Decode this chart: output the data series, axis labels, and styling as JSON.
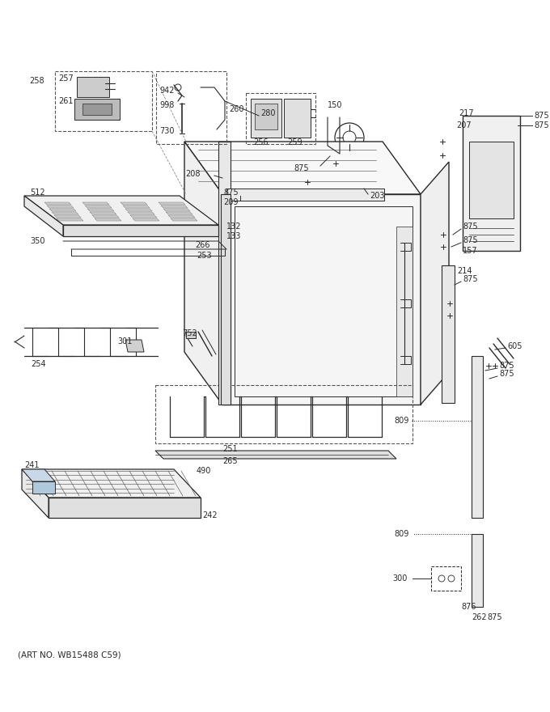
{
  "art_no": "(ART NO. WB15488 C59)",
  "bg_color": "#ffffff",
  "fig_width": 6.8,
  "fig_height": 8.8,
  "dpi": 100,
  "line_color": "#2a2a2a",
  "leader_color": "#2a2a2a",
  "font_size": 7.0,
  "font_size_art": 7.5
}
